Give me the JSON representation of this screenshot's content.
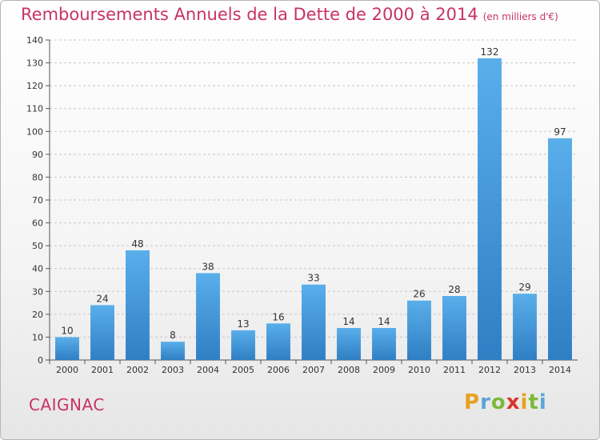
{
  "title": "Remboursements Annuels de la Dette de 2000 à 2014",
  "unit": "(en milliers d'€)",
  "commune": "CAIGNAC",
  "logo_text": "Proxiti",
  "colors": {
    "title": "#c83267",
    "bar_top": "#5aaeea",
    "bar_bottom": "#2f7fc4",
    "grid": "#c8c8c8"
  },
  "chart_data": {
    "type": "bar",
    "title": "Remboursements Annuels de la Dette de 2000 à 2014",
    "subtitle": "(en milliers d'€)",
    "xlabel": "",
    "ylabel": "",
    "categories": [
      "2000",
      "2001",
      "2002",
      "2003",
      "2004",
      "2005",
      "2006",
      "2007",
      "2008",
      "2009",
      "2010",
      "2011",
      "2012",
      "2013",
      "2014"
    ],
    "values": [
      10,
      24,
      48,
      8,
      38,
      13,
      16,
      33,
      14,
      14,
      26,
      28,
      132,
      29,
      97
    ],
    "ylim": [
      0,
      140
    ],
    "yticks": [
      0,
      10,
      20,
      30,
      40,
      50,
      60,
      70,
      80,
      90,
      100,
      110,
      120,
      130,
      140
    ],
    "grid": true,
    "legend": "none"
  }
}
